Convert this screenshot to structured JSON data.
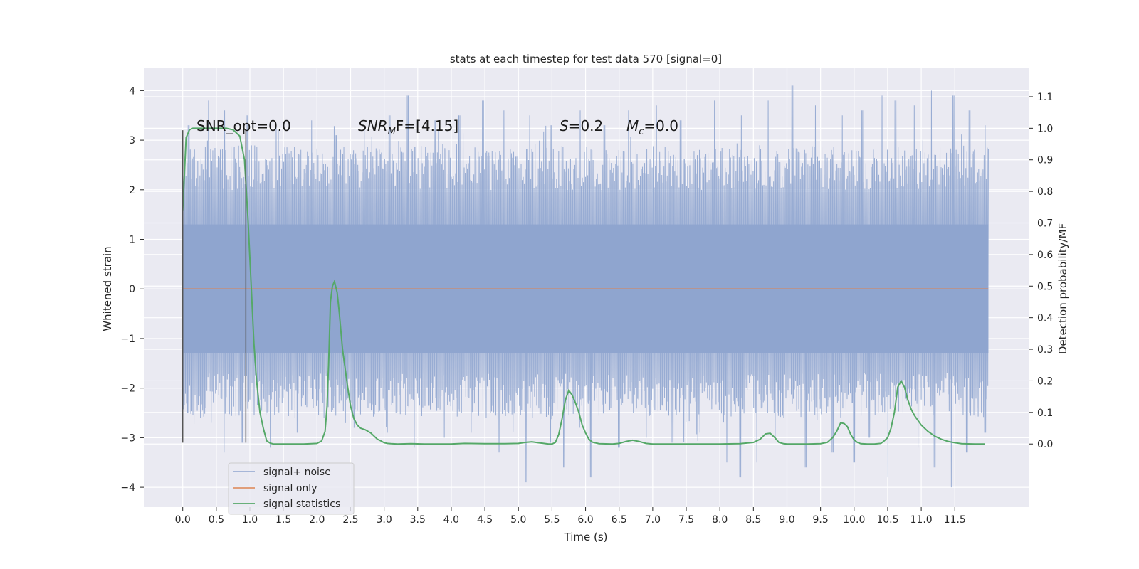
{
  "chart_data": {
    "type": "line",
    "title": "stats at each timestep for test data 570 [signal=0]",
    "xlabel": "Time (s)",
    "ylabel": "Whitened strain",
    "ylabel_right": "Detection probability/MF",
    "xlim": [
      -0.58,
      12.6
    ],
    "ylim": [
      -4.4,
      4.45
    ],
    "ylim_right": [
      -0.2,
      1.19
    ],
    "x_ticks": [
      "0.0",
      "0.5",
      "1.0",
      "1.5",
      "2.0",
      "2.5",
      "3.0",
      "3.5",
      "4.0",
      "4.5",
      "5.0",
      "5.5",
      "6.0",
      "6.5",
      "7.0",
      "7.5",
      "8.0",
      "8.5",
      "9.0",
      "9.5",
      "10.0",
      "10.5",
      "11.0",
      "11.5"
    ],
    "y_ticks": [
      "4",
      "3",
      "2",
      "1",
      "0",
      "−1",
      "−2",
      "−3",
      "−4"
    ],
    "y_ticks_right": [
      "1.1",
      "1.0",
      "0.9",
      "0.8",
      "0.7",
      "0.6",
      "0.5",
      "0.4",
      "0.3",
      "0.2",
      "0.1",
      "0.0"
    ],
    "grid": true,
    "legend_position": "lower-left",
    "annotations": {
      "snr_opt": "SNR_opt=0.0",
      "snr_mf_italic": "SNR",
      "snr_mf_sub": "M",
      "snr_mf_rest": "F=[4.15]",
      "s_italic": "S",
      "s_rest": "=0.2",
      "mc_italic": "M",
      "mc_sub": "c",
      "mc_rest": "=0.0"
    },
    "vlines": {
      "x": [
        0.0,
        0.94
      ],
      "y_range": [
        -3.1,
        3.2
      ]
    },
    "series": [
      {
        "name": "signal+ noise",
        "color": "#8fa5cf",
        "x_range": [
          0.0,
          12.0
        ],
        "core_range": [
          -1.3,
          1.3
        ],
        "peaks_up": [
          [
            0.09,
            3.3
          ],
          [
            0.38,
            3.8
          ],
          [
            0.62,
            3.6
          ],
          [
            0.95,
            3.5
          ],
          [
            1.42,
            3.2
          ],
          [
            1.92,
            3.4
          ],
          [
            2.28,
            3.1
          ],
          [
            2.7,
            3.3
          ],
          [
            3.08,
            3.5
          ],
          [
            3.35,
            3.9
          ],
          [
            3.75,
            3.4
          ],
          [
            4.12,
            3.5
          ],
          [
            4.47,
            3.8
          ],
          [
            4.78,
            3.6
          ],
          [
            5.17,
            3.5
          ],
          [
            5.48,
            3.3
          ],
          [
            5.92,
            3.6
          ],
          [
            6.28,
            3.3
          ],
          [
            6.64,
            3.6
          ],
          [
            7.06,
            3.7
          ],
          [
            7.42,
            3.4
          ],
          [
            7.92,
            3.8
          ],
          [
            8.32,
            3.5
          ],
          [
            8.72,
            3.8
          ],
          [
            9.08,
            4.1
          ],
          [
            9.42,
            3.7
          ],
          [
            9.82,
            3.5
          ],
          [
            10.12,
            3.6
          ],
          [
            10.42,
            3.9
          ],
          [
            10.62,
            3.8
          ],
          [
            10.9,
            3.7
          ],
          [
            11.15,
            4.0
          ],
          [
            11.48,
            3.9
          ],
          [
            11.72,
            3.6
          ],
          [
            11.95,
            3.3
          ]
        ],
        "peaks_down": [
          [
            0.08,
            -2.5
          ],
          [
            0.42,
            -2.7
          ],
          [
            0.62,
            -3.3
          ],
          [
            0.88,
            -3.1
          ],
          [
            1.3,
            -3.2
          ],
          [
            1.7,
            -2.9
          ],
          [
            2.1,
            -2.6
          ],
          [
            2.55,
            -2.8
          ],
          [
            3.05,
            -2.9
          ],
          [
            3.45,
            -3.2
          ],
          [
            3.9,
            -3.0
          ],
          [
            4.3,
            -2.9
          ],
          [
            4.7,
            -3.3
          ],
          [
            5.12,
            -3.9
          ],
          [
            5.48,
            -3.1
          ],
          [
            5.68,
            -3.6
          ],
          [
            6.08,
            -3.8
          ],
          [
            6.5,
            -3.2
          ],
          [
            6.9,
            -3.0
          ],
          [
            7.3,
            -3.1
          ],
          [
            7.7,
            -2.9
          ],
          [
            8.1,
            -3.5
          ],
          [
            8.3,
            -3.8
          ],
          [
            8.55,
            -3.5
          ],
          [
            8.82,
            -3.0
          ],
          [
            9.28,
            -3.6
          ],
          [
            9.68,
            -3.3
          ],
          [
            10.0,
            -3.5
          ],
          [
            10.22,
            -3.0
          ],
          [
            10.5,
            -3.8
          ],
          [
            10.95,
            -3.2
          ],
          [
            11.2,
            -3.6
          ],
          [
            11.45,
            -4.0
          ],
          [
            11.68,
            -3.3
          ],
          [
            11.95,
            -2.9
          ]
        ]
      },
      {
        "name": "signal only",
        "color": "#dd8452",
        "x": [
          0.0,
          12.0
        ],
        "values": [
          0.0,
          0.0
        ]
      },
      {
        "name": "signal statistics",
        "color": "#55a868",
        "axis": "right",
        "x": [
          0.0,
          0.05,
          0.1,
          0.15,
          0.25,
          0.4,
          0.55,
          0.65,
          0.75,
          0.85,
          0.92,
          0.97,
          1.02,
          1.06,
          1.1,
          1.15,
          1.2,
          1.25,
          1.3,
          1.35,
          1.45,
          1.6,
          1.8,
          2.0,
          2.07,
          2.12,
          2.15,
          2.18,
          2.2,
          2.23,
          2.26,
          2.3,
          2.33,
          2.38,
          2.45,
          2.5,
          2.55,
          2.6,
          2.65,
          2.72,
          2.8,
          2.9,
          2.95,
          3.0,
          3.05,
          3.1,
          3.2,
          3.4,
          3.6,
          3.8,
          4.0,
          4.2,
          4.5,
          4.8,
          5.0,
          5.1,
          5.2,
          5.3,
          5.45,
          5.5,
          5.55,
          5.6,
          5.65,
          5.7,
          5.75,
          5.8,
          5.85,
          5.9,
          5.95,
          6.0,
          6.05,
          6.1,
          6.2,
          6.4,
          6.5,
          6.6,
          6.7,
          6.8,
          6.9,
          7.0,
          7.2,
          7.5,
          8.0,
          8.3,
          8.5,
          8.6,
          8.68,
          8.75,
          8.82,
          8.88,
          8.95,
          9.0,
          9.1,
          9.3,
          9.5,
          9.6,
          9.68,
          9.74,
          9.8,
          9.85,
          9.9,
          9.95,
          10.0,
          10.05,
          10.1,
          10.2,
          10.3,
          10.4,
          10.45,
          10.5,
          10.55,
          10.6,
          10.65,
          10.7,
          10.75,
          10.8,
          10.85,
          10.9,
          11.0,
          11.1,
          11.2,
          11.3,
          11.4,
          11.5,
          11.6,
          11.8,
          11.95
        ],
        "values": [
          0.74,
          0.97,
          0.995,
          1.0,
          1.0,
          1.0,
          1.0,
          1.0,
          0.995,
          0.975,
          0.9,
          0.72,
          0.5,
          0.32,
          0.2,
          0.1,
          0.05,
          0.01,
          0.003,
          0.0,
          0.0,
          0.0,
          0.0,
          0.002,
          0.01,
          0.04,
          0.12,
          0.3,
          0.45,
          0.5,
          0.515,
          0.48,
          0.42,
          0.3,
          0.19,
          0.12,
          0.08,
          0.06,
          0.05,
          0.045,
          0.035,
          0.015,
          0.01,
          0.004,
          0.002,
          0.001,
          0.0,
          0.001,
          0.0,
          0.0,
          0.0,
          0.002,
          0.001,
          0.001,
          0.002,
          0.005,
          0.007,
          0.004,
          0.0,
          0.0,
          0.005,
          0.03,
          0.08,
          0.14,
          0.17,
          0.155,
          0.13,
          0.1,
          0.06,
          0.035,
          0.015,
          0.006,
          0.001,
          0.0,
          0.002,
          0.008,
          0.012,
          0.008,
          0.002,
          0.0,
          0.0,
          0.0,
          0.0,
          0.001,
          0.005,
          0.015,
          0.032,
          0.034,
          0.02,
          0.005,
          0.001,
          0.0,
          0.0,
          0.0,
          0.001,
          0.005,
          0.02,
          0.04,
          0.067,
          0.065,
          0.055,
          0.03,
          0.013,
          0.005,
          0.001,
          0.0,
          0.0,
          0.002,
          0.01,
          0.02,
          0.05,
          0.1,
          0.18,
          0.2,
          0.18,
          0.14,
          0.11,
          0.09,
          0.06,
          0.04,
          0.025,
          0.015,
          0.008,
          0.004,
          0.001,
          0.0,
          0.0
        ]
      }
    ]
  }
}
